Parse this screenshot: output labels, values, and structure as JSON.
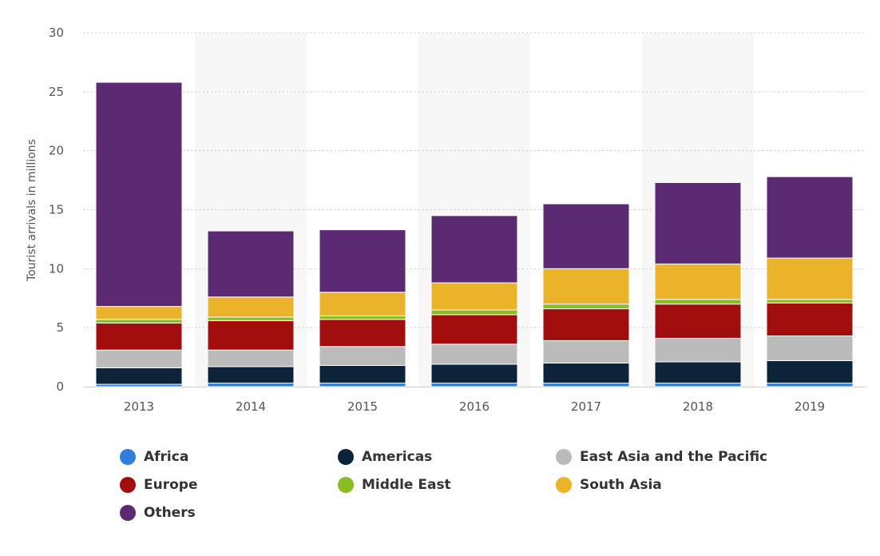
{
  "chart_data": {
    "type": "bar",
    "stacked": true,
    "categories": [
      "2013",
      "2014",
      "2015",
      "2016",
      "2017",
      "2018",
      "2019"
    ],
    "ylabel": "Tourist arrivals in millions",
    "ylim": [
      0,
      30
    ],
    "yticks": [
      "0",
      "5",
      "10",
      "15",
      "20",
      "25",
      "30"
    ],
    "grid": true,
    "legend_position": "bottom",
    "series": [
      {
        "name": "Africa",
        "color": "#2f7ed8",
        "values": [
          0.2,
          0.3,
          0.3,
          0.3,
          0.3,
          0.3,
          0.3
        ]
      },
      {
        "name": "Americas",
        "color": "#0d233a",
        "values": [
          1.4,
          1.4,
          1.5,
          1.6,
          1.7,
          1.8,
          1.9
        ]
      },
      {
        "name": "East Asia and the Pacific",
        "color": "#bbbbbb",
        "values": [
          1.5,
          1.4,
          1.6,
          1.7,
          1.9,
          2.0,
          2.1
        ]
      },
      {
        "name": "Europe",
        "color": "#a20e0e",
        "values": [
          2.3,
          2.5,
          2.3,
          2.5,
          2.7,
          2.9,
          2.8
        ]
      },
      {
        "name": "Middle East",
        "color": "#8bbc21",
        "values": [
          0.3,
          0.3,
          0.3,
          0.4,
          0.4,
          0.4,
          0.3
        ]
      },
      {
        "name": "South Asia",
        "color": "#eab32a",
        "values": [
          1.1,
          1.7,
          2.0,
          2.3,
          3.0,
          3.0,
          3.5
        ]
      },
      {
        "name": "Others",
        "color": "#5c2a72",
        "values": [
          19.0,
          5.6,
          5.3,
          5.7,
          5.5,
          6.9,
          6.9
        ]
      }
    ]
  }
}
